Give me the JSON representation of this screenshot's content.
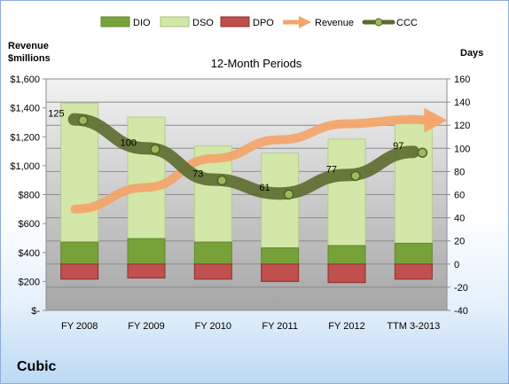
{
  "company": "Cubic",
  "chart_data": {
    "type": "bar",
    "subtitle": "12-Month Periods",
    "left_axis_title": [
      "Revenue",
      "$millions"
    ],
    "right_axis_title": "Days",
    "categories": [
      "FY 2008",
      "FY 2009",
      "FY 2010",
      "FY 2011",
      "FY 2012",
      "TTM 3-2013"
    ],
    "left_axis": {
      "ticks": [
        "$-",
        "$200",
        "$400",
        "$600",
        "$800",
        "$1,000",
        "$1,200",
        "$1,400",
        "$1,600"
      ],
      "min": 0,
      "max": 1600
    },
    "right_axis": {
      "ticks": [
        "-40",
        "-20",
        "0",
        "20",
        "40",
        "60",
        "80",
        "100",
        "120",
        "140",
        "160"
      ],
      "min": -40,
      "max": 160
    },
    "grid": true,
    "legend_position": "top",
    "series": [
      {
        "name": "DIO",
        "type": "stacked-bar",
        "axis": "right",
        "values": [
          19,
          22,
          19,
          14,
          16,
          18
        ],
        "color": "#77a23a"
      },
      {
        "name": "DSO",
        "type": "stacked-bar",
        "axis": "right",
        "values": [
          120,
          105,
          83,
          82,
          92,
          108
        ],
        "color": "#d3e7a8"
      },
      {
        "name": "DPO",
        "type": "negative-bar",
        "axis": "right",
        "values": [
          -13,
          -12,
          -13,
          -15,
          -16,
          -13
        ],
        "color": "#c0504d"
      },
      {
        "name": "Revenue",
        "type": "trend-arrow",
        "axis": "left",
        "values": [
          700,
          850,
          1050,
          1180,
          1290,
          1320
        ],
        "color": "#f4a46a"
      },
      {
        "name": "CCC",
        "type": "line",
        "axis": "right",
        "values": [
          125,
          100,
          73,
          61,
          77,
          97
        ],
        "data_labels": [
          "125",
          "100",
          "73",
          "61",
          "77",
          "97"
        ],
        "color": "#5b6b2f"
      }
    ]
  }
}
